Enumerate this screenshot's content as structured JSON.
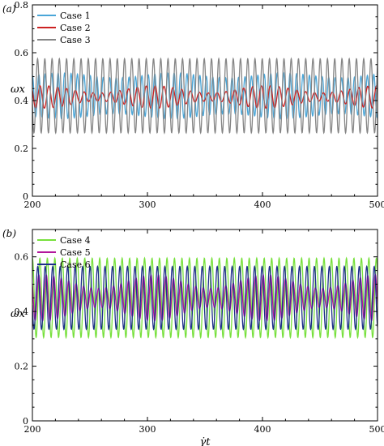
{
  "chart_data": [
    {
      "type": "line",
      "panel_label": "(a)",
      "xlabel": "",
      "ylabel": "ωx",
      "xlim": [
        200,
        500
      ],
      "ylim": [
        0,
        0.8
      ],
      "xticks": [
        200,
        300,
        400,
        500
      ],
      "yticks": [
        0,
        0.2,
        0.4,
        0.6,
        0.8
      ],
      "xtick_labels": [
        "200",
        "300",
        "400",
        "500"
      ],
      "ytick_labels": [
        "0",
        "0.2",
        "0.4",
        "0.6",
        "0.8"
      ],
      "legend_position": "top-left",
      "series": [
        {
          "name": "Case 1",
          "color": "#4aa6d8",
          "mean": 0.42,
          "amplitude": 0.085,
          "period": 5.6,
          "cycles": 54,
          "amp_variation": 0.01
        },
        {
          "name": "Case 2",
          "color": "#cc2222",
          "mean": 0.415,
          "amplitude": 0.032,
          "period": 7.7,
          "cycles": 39,
          "amp_variation": 0.015
        },
        {
          "name": "Case 3",
          "color": "#858585",
          "mean": 0.42,
          "amplitude": 0.155,
          "period": 6.3,
          "cycles": 48,
          "amp_variation": 0.0
        }
      ]
    },
    {
      "type": "line",
      "panel_label": "(b)",
      "xlabel": "γ̇t",
      "ylabel": "ωx",
      "xlim": [
        200,
        500
      ],
      "ylim": [
        0,
        0.7
      ],
      "xticks": [
        200,
        300,
        400,
        500
      ],
      "yticks": [
        0,
        0.2,
        0.4,
        0.6
      ],
      "xtick_labels": [
        "200",
        "300",
        "400",
        "500"
      ],
      "ytick_labels": [
        "0",
        "0.2",
        "0.4",
        "0.6"
      ],
      "legend_position": "top-left",
      "series": [
        {
          "name": "Case 4",
          "color": "#77e03c",
          "mean": 0.45,
          "amplitude": 0.145,
          "period": 6.5,
          "cycles": 46,
          "amp_variation": 0.0
        },
        {
          "name": "Case 5",
          "color": "#b3179c",
          "mean": 0.45,
          "amplitude": 0.06,
          "period": 6.5,
          "cycles": 46,
          "amp_variation": 0.025
        },
        {
          "name": "Case 6",
          "color": "#1d2e8a",
          "mean": 0.45,
          "amplitude": 0.115,
          "period": 6.5,
          "cycles": 46,
          "amp_variation": 0.0
        }
      ]
    }
  ]
}
